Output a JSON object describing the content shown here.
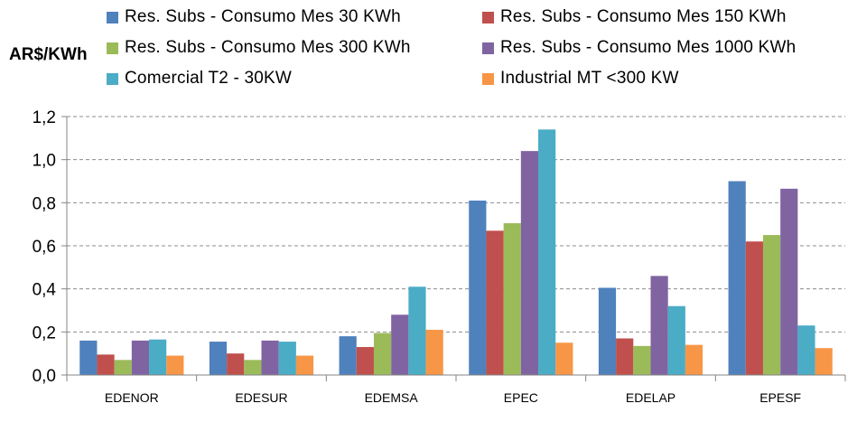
{
  "chart_data": {
    "type": "bar",
    "title": "",
    "xlabel": "",
    "ylabel": "AR$/KWh",
    "ylim": [
      0,
      1.2
    ],
    "yticks": [
      "0,0",
      "0,2",
      "0,4",
      "0,6",
      "0,8",
      "1,0",
      "1,2"
    ],
    "grid": true,
    "legend_position": "top",
    "categories": [
      "EDENOR",
      "EDESUR",
      "EDEMSA",
      "EPEC",
      "EDELAP",
      "EPESF"
    ],
    "series": [
      {
        "name": "Res. Subs - Consumo Mes 30 KWh",
        "color": "#4F81BD",
        "values": [
          0.16,
          0.155,
          0.18,
          0.81,
          0.405,
          0.9
        ]
      },
      {
        "name": "Res. Subs - Consumo Mes 150 KWh",
        "color": "#C0504D",
        "values": [
          0.095,
          0.1,
          0.13,
          0.67,
          0.17,
          0.62
        ]
      },
      {
        "name": "Res. Subs - Consumo Mes 300 KWh",
        "color": "#9BBB59",
        "values": [
          0.07,
          0.07,
          0.195,
          0.705,
          0.135,
          0.65
        ]
      },
      {
        "name": "Res. Subs - Consumo Mes 1000 KWh",
        "color": "#8064A2",
        "values": [
          0.16,
          0.16,
          0.28,
          1.04,
          0.46,
          0.865
        ]
      },
      {
        "name": "Comercial T2 - 30KW",
        "color": "#4BACC6",
        "values": [
          0.165,
          0.155,
          0.41,
          1.14,
          0.32,
          0.23
        ]
      },
      {
        "name": "Industrial MT <300 KW",
        "color": "#F79646",
        "values": [
          0.09,
          0.09,
          0.21,
          0.15,
          0.14,
          0.125
        ]
      }
    ]
  }
}
